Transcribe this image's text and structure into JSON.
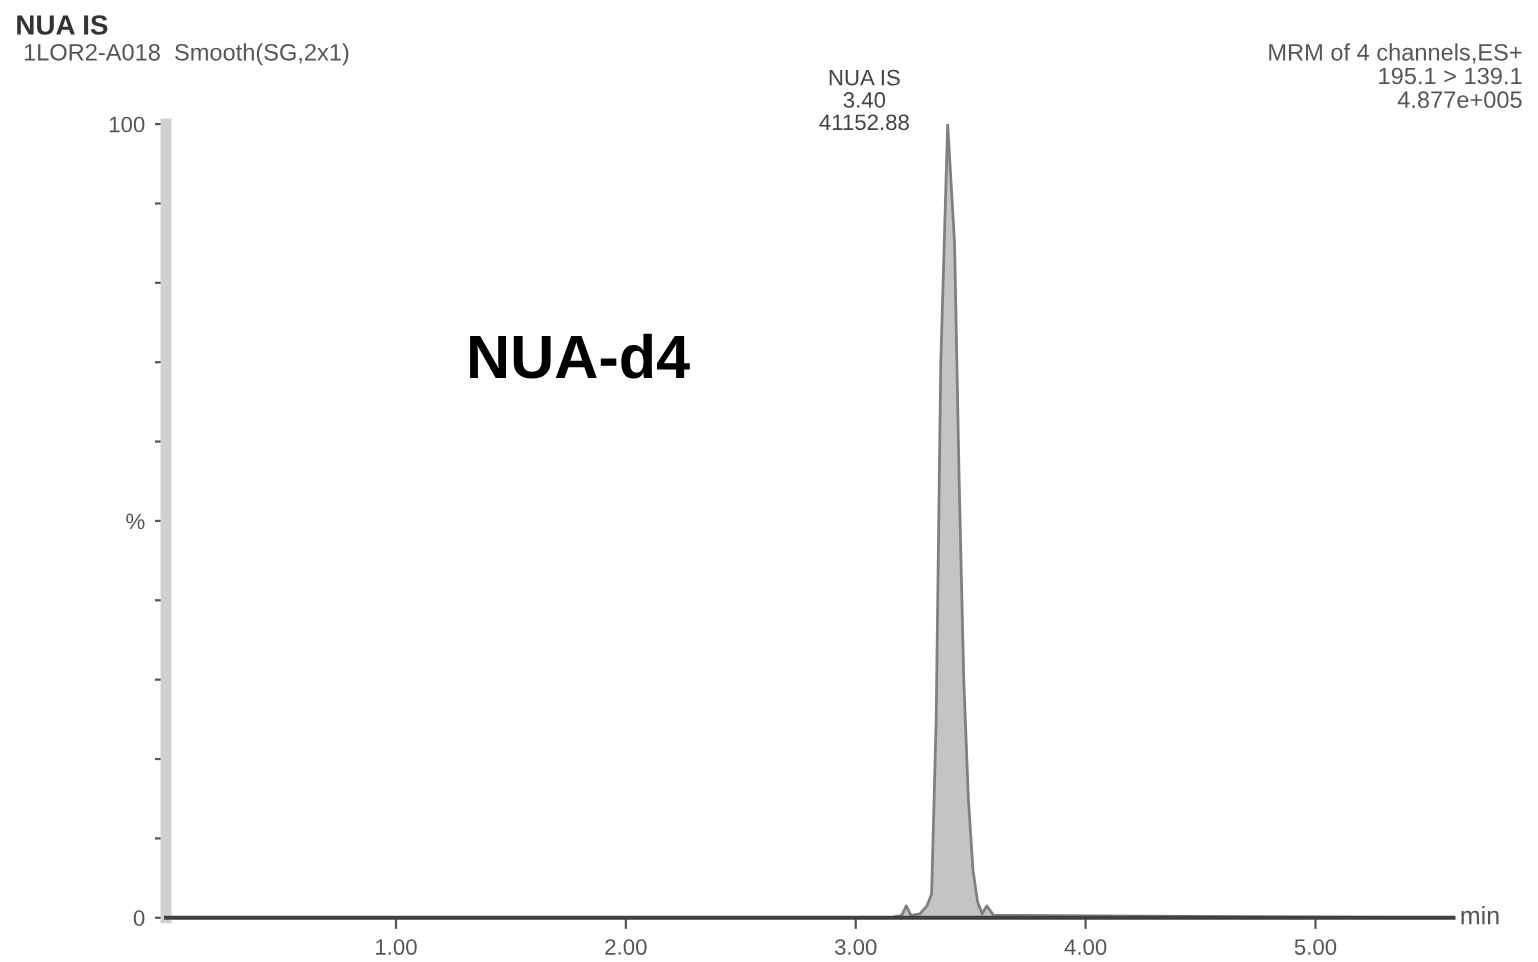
{
  "chart_data": {
    "type": "area",
    "title": "NUA IS",
    "subtitle": "1LOR2-A018  Smooth(SG,2x1)",
    "xlabel": "min",
    "x": [
      0,
      3.15,
      3.2,
      3.22,
      3.24,
      3.28,
      3.31,
      3.33,
      3.35,
      3.37,
      3.4,
      3.43,
      3.45,
      3.47,
      3.49,
      3.51,
      3.53,
      3.55,
      3.57,
      3.6,
      5.6
    ],
    "series": [
      {
        "color": "#c4c4c4",
        "values": [
          0,
          0,
          0.3,
          1.5,
          0.3,
          0.5,
          1.5,
          3,
          25,
          70,
          100,
          85,
          55,
          30,
          15,
          6,
          2,
          0.5,
          1.5,
          0.3,
          0
        ]
      }
    ],
    "xlim": [
      0,
      5.6
    ],
    "ylim": [
      0,
      100
    ],
    "xticks": [
      {
        "value": 1,
        "label": "1.00"
      },
      {
        "value": 2,
        "label": "2.00"
      },
      {
        "value": 3,
        "label": "3.00"
      },
      {
        "value": 4,
        "label": "4.00"
      },
      {
        "value": 5,
        "label": "5.00"
      }
    ],
    "yticks": [
      0,
      {
        "value": 10,
        "label": null
      },
      {
        "value": 20,
        "label": null
      },
      {
        "value": 30,
        "label": null
      },
      {
        "value": 40,
        "label": null
      },
      {
        "value": 50,
        "label": "%"
      },
      {
        "value": 60,
        "label": null
      },
      {
        "value": 70,
        "label": null
      },
      {
        "value": 80,
        "label": null
      },
      {
        "value": 90,
        "label": null
      },
      100
    ],
    "annotations": [
      {
        "text": "NUA IS\n3.40\n41152.88",
        "x": 3.4,
        "y": 100
      },
      "NUA-d4",
      "MRM of 4 channels,ES+\n195.1 > 139.1\n4.877e+005"
    ],
    "grid": false,
    "legend": false
  }
}
